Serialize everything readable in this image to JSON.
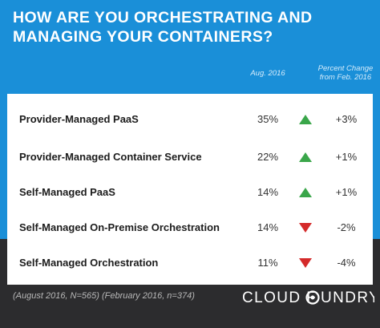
{
  "title": "HOW ARE YOU ORCHESTRATING AND MANAGING YOUR CONTAINERS?",
  "column_headers": {
    "percent": "Aug. 2016",
    "change": "Percent Change from Feb. 2016"
  },
  "chart_data": {
    "type": "table",
    "title": "HOW ARE YOU ORCHESTRATING AND MANAGING YOUR CONTAINERS?",
    "columns": [
      "",
      "Aug. 2016",
      "Percent Change from Feb. 2016"
    ],
    "rows": [
      {
        "label": "Provider-Managed PaaS",
        "value": 35,
        "value_text": "35%",
        "change": 3,
        "change_text": "+3%",
        "direction": "up"
      },
      {
        "label": "Provider-Managed Container Service",
        "value": 22,
        "value_text": "22%",
        "change": 1,
        "change_text": "+1%",
        "direction": "up"
      },
      {
        "label": "Self-Managed PaaS",
        "value": 14,
        "value_text": "14%",
        "change": 1,
        "change_text": "+1%",
        "direction": "up"
      },
      {
        "label": "Self-Managed On-Premise Orchestration",
        "value": 14,
        "value_text": "14%",
        "change": -2,
        "change_text": "-2%",
        "direction": "down"
      },
      {
        "label": "Self-Managed Orchestration",
        "value": 11,
        "value_text": "11%",
        "change": -4,
        "change_text": "-4%",
        "direction": "down"
      }
    ]
  },
  "footnote": "(August 2016, N=565) (February 2016, n=374)",
  "brand": "CLOUD FOUNDRY",
  "colors": {
    "header_blue": "#1a8fd8",
    "footer_dark": "#2c2c2e",
    "up_arrow": "#3aa64a",
    "down_arrow": "#d42a2a"
  }
}
